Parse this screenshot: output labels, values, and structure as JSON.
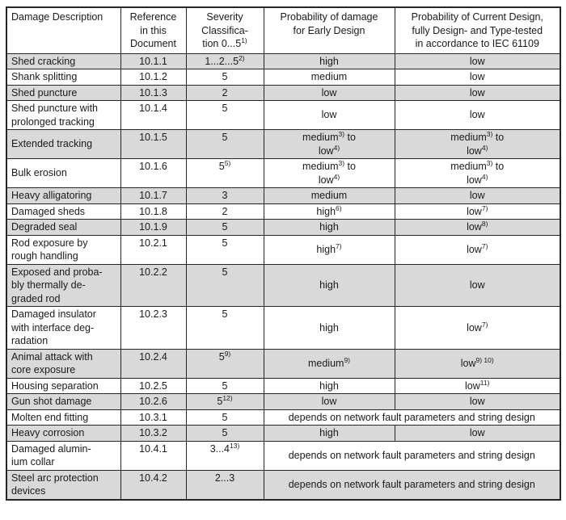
{
  "colors": {
    "row_shade": "#d9d9d9",
    "border": "#262626",
    "text": "#1a1a1a",
    "background": "#ffffff"
  },
  "table": {
    "columns": [
      {
        "key": "damage",
        "header": [
          "Damage Description"
        ]
      },
      {
        "key": "reference",
        "header": [
          "Reference\nin this\nDocument"
        ]
      },
      {
        "key": "severity",
        "header": [
          "Severity\nClassifica-\ntion 0...5",
          {
            "sup": "1)"
          }
        ]
      },
      {
        "key": "early",
        "header": [
          "Probability of damage\nfor Early Design"
        ]
      },
      {
        "key": "current",
        "header": [
          "Probability of Current Design,\nfully Design- and Type-tested\nin accordance to IEC 61109"
        ]
      }
    ],
    "rows": [
      {
        "shaded": true,
        "damage": [
          "Shed cracking"
        ],
        "reference": [
          "10.1.1"
        ],
        "severity": [
          "1...2...5",
          {
            "sup": "2)"
          }
        ],
        "early": [
          "high"
        ],
        "current": [
          "low"
        ]
      },
      {
        "shaded": false,
        "damage": [
          "Shank splitting"
        ],
        "reference": [
          "10.1.2"
        ],
        "severity": [
          "5"
        ],
        "early": [
          "medium"
        ],
        "current": [
          "low"
        ]
      },
      {
        "shaded": true,
        "damage": [
          "Shed puncture"
        ],
        "reference": [
          "10.1.3"
        ],
        "severity": [
          "2"
        ],
        "early": [
          "low"
        ],
        "current": [
          "low"
        ]
      },
      {
        "shaded": false,
        "damage": [
          "Shed puncture with\nprolonged tracking"
        ],
        "reference": [
          "10.1.4"
        ],
        "severity": [
          "5"
        ],
        "early": [
          "low"
        ],
        "current": [
          "low"
        ]
      },
      {
        "shaded": true,
        "damage": [
          "Extended tracking"
        ],
        "reference": [
          "10.1.5"
        ],
        "severity": [
          "5"
        ],
        "early": [
          "medium",
          {
            "sup": "3)"
          },
          " to\nlow",
          {
            "sup": "4)"
          }
        ],
        "current": [
          "medium",
          {
            "sup": "3)"
          },
          " to\nlow",
          {
            "sup": "4)"
          }
        ]
      },
      {
        "shaded": false,
        "damage": [
          "Bulk erosion"
        ],
        "reference": [
          "10.1.6"
        ],
        "severity": [
          "5",
          {
            "sup": "5)"
          }
        ],
        "early": [
          "medium",
          {
            "sup": "3)"
          },
          " to\nlow",
          {
            "sup": "4)"
          }
        ],
        "current": [
          "medium",
          {
            "sup": "3)"
          },
          " to\nlow",
          {
            "sup": "4)"
          }
        ]
      },
      {
        "shaded": true,
        "damage": [
          "Heavy alligatoring"
        ],
        "reference": [
          "10.1.7"
        ],
        "severity": [
          "3"
        ],
        "early": [
          "medium"
        ],
        "current": [
          "low"
        ]
      },
      {
        "shaded": false,
        "damage": [
          "Damaged sheds"
        ],
        "reference": [
          "10.1.8"
        ],
        "severity": [
          "2"
        ],
        "early": [
          "high",
          {
            "sup": "6)"
          }
        ],
        "current": [
          "low",
          {
            "sup": "7)"
          }
        ]
      },
      {
        "shaded": true,
        "damage": [
          "Degraded seal"
        ],
        "reference": [
          "10.1.9"
        ],
        "severity": [
          "5"
        ],
        "early": [
          "high"
        ],
        "current": [
          "low",
          {
            "sup": "8)"
          }
        ]
      },
      {
        "shaded": false,
        "damage": [
          "Rod exposure by\nrough handling"
        ],
        "reference": [
          "10.2.1"
        ],
        "severity": [
          "5"
        ],
        "early": [
          "high",
          {
            "sup": "7)"
          }
        ],
        "current": [
          "low",
          {
            "sup": "7)"
          }
        ]
      },
      {
        "shaded": true,
        "damage": [
          "Exposed and proba-\nbly thermally de-\ngraded rod"
        ],
        "reference": [
          "10.2.2"
        ],
        "severity": [
          "5"
        ],
        "early": [
          "high"
        ],
        "current": [
          "low"
        ]
      },
      {
        "shaded": false,
        "damage": [
          "Damaged insulator\nwith interface deg-\nradation"
        ],
        "reference": [
          "10.2.3"
        ],
        "severity": [
          "5"
        ],
        "early": [
          "high"
        ],
        "current": [
          "low",
          {
            "sup": "7)"
          }
        ]
      },
      {
        "shaded": true,
        "damage": [
          "Animal attack with\ncore exposure"
        ],
        "reference": [
          "10.2.4"
        ],
        "severity": [
          "5",
          {
            "sup": "9)"
          }
        ],
        "early": [
          "medium",
          {
            "sup": "9)"
          }
        ],
        "current": [
          "low",
          {
            "sup": "9) 10)"
          }
        ]
      },
      {
        "shaded": false,
        "damage": [
          "Housing separation"
        ],
        "reference": [
          "10.2.5"
        ],
        "severity": [
          "5"
        ],
        "early": [
          "high"
        ],
        "current": [
          "low",
          {
            "sup": "11)"
          }
        ]
      },
      {
        "shaded": true,
        "damage": [
          "Gun shot damage"
        ],
        "reference": [
          "10.2.6"
        ],
        "severity": [
          "5",
          {
            "sup": "12)"
          }
        ],
        "early": [
          "low"
        ],
        "current": [
          "low"
        ]
      },
      {
        "shaded": false,
        "damage": [
          "Molten end fitting"
        ],
        "reference": [
          "10.3.1"
        ],
        "severity": [
          "5"
        ],
        "merged": [
          "depends on network fault parameters and string design"
        ]
      },
      {
        "shaded": true,
        "damage": [
          "Heavy corrosion"
        ],
        "reference": [
          "10.3.2"
        ],
        "severity": [
          "5"
        ],
        "early": [
          "high"
        ],
        "current": [
          "low"
        ]
      },
      {
        "shaded": false,
        "damage": [
          "Damaged alumin-\nium collar"
        ],
        "reference": [
          "10.4.1"
        ],
        "severity": [
          "3...4",
          {
            "sup": "13)"
          }
        ],
        "merged": [
          "depends on network fault parameters and string design"
        ]
      },
      {
        "shaded": true,
        "damage": [
          "Steel arc protection\ndevices"
        ],
        "reference": [
          "10.4.2"
        ],
        "severity": [
          "2...3"
        ],
        "merged": [
          "depends on network fault parameters and string design"
        ]
      }
    ]
  }
}
